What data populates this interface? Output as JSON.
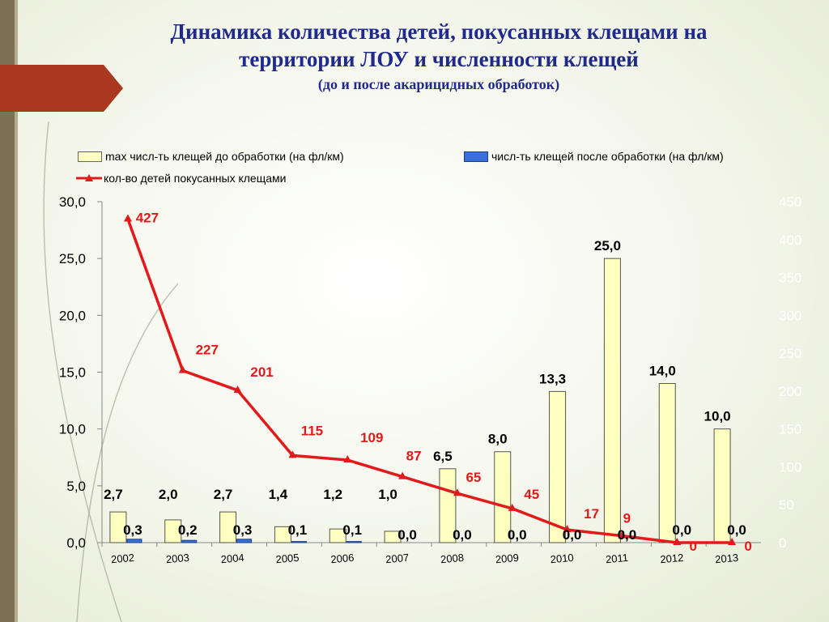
{
  "title": {
    "line1": "Динамика  количества детей, покусанных клещами на",
    "line2": "территории ЛОУ и численности клещей",
    "subtitle": "(до и после акарицидных обработок)"
  },
  "colors": {
    "bar_before": "#ffffc0",
    "bar_after": "#3a6fd9",
    "line_children": "#e31a1c",
    "title": "#1f2a8c"
  },
  "chart_data": {
    "type": "bar",
    "categories": [
      "2002",
      "2003",
      "2004",
      "2005",
      "2006",
      "2007",
      "2008",
      "2009",
      "2010",
      "2011",
      "2012",
      "2013"
    ],
    "y_left": {
      "range": [
        0,
        30
      ],
      "ticks": [
        "0,0",
        "5,0",
        "10,0",
        "15,0",
        "20,0",
        "25,0",
        "30,0"
      ]
    },
    "y_right": {
      "range": [
        0,
        450
      ],
      "ticks": [
        "0",
        "50",
        "100",
        "150",
        "200",
        "250",
        "300",
        "350",
        "400",
        "450"
      ]
    },
    "legend_placement": "top",
    "series": [
      {
        "name": "max числ-ть клещей до обработки (на фл/км)",
        "kind": "bar",
        "axis": "left",
        "values": [
          2.7,
          2.0,
          2.7,
          1.4,
          1.2,
          1.0,
          6.5,
          8.0,
          13.3,
          25.0,
          14.0,
          10.0
        ],
        "labels": [
          "2,7",
          "2,0",
          "2,7",
          "1,4",
          "1,2",
          "1,0",
          "6,5",
          "8,0",
          "13,3",
          "25,0",
          "14,0",
          "10,0"
        ]
      },
      {
        "name": "числ-ть клещей после обработки (на фл/км)",
        "kind": "bar",
        "axis": "left",
        "values": [
          0.3,
          0.2,
          0.3,
          0.1,
          0.1,
          0.0,
          0.0,
          0.0,
          0.0,
          0.0,
          0.0,
          0.0
        ],
        "labels": [
          "0,3",
          "0,2",
          "0,3",
          "0,1",
          "0,1",
          "0,0",
          "0,0",
          "0,0",
          "0,0",
          "0,0",
          "0,0",
          "0,0"
        ]
      },
      {
        "name": "кол-во детей покусанных клещами",
        "kind": "line",
        "axis": "right",
        "values": [
          427,
          227,
          201,
          115,
          109,
          87,
          65,
          45,
          17,
          9,
          0,
          0
        ],
        "labels": [
          "427",
          "227",
          "201",
          "115",
          "109",
          "87",
          "65",
          "45",
          "17",
          "9",
          "0",
          "0"
        ]
      }
    ]
  }
}
